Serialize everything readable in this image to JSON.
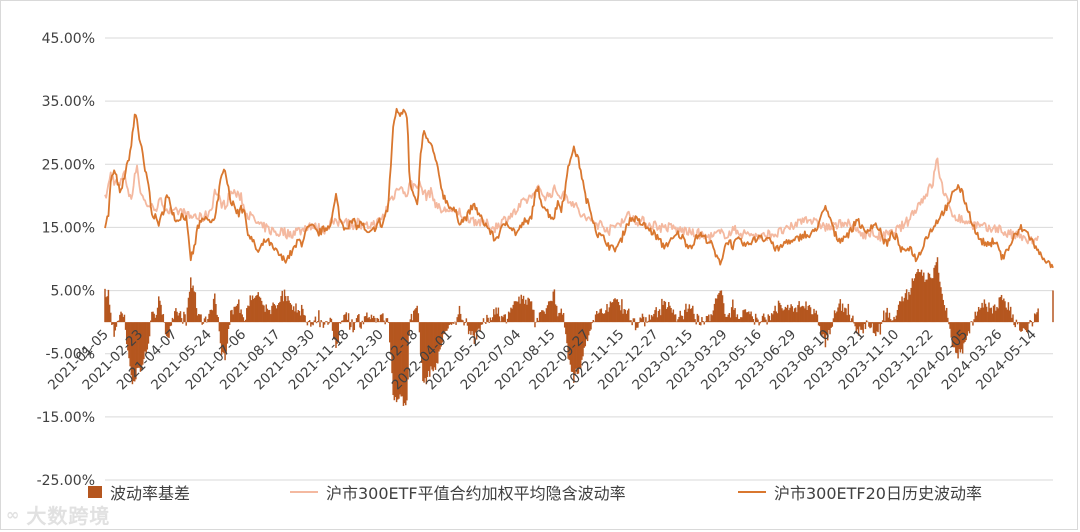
{
  "chart_data": {
    "type": "line",
    "title": "",
    "xlabel": "",
    "ylabel": "",
    "ylim": [
      -0.25,
      0.45
    ],
    "yticks": [
      -0.25,
      -0.15,
      -0.05,
      0.05,
      0.15,
      0.25,
      0.35,
      0.45
    ],
    "ytick_labels": [
      "-25.00%",
      "-15.00%",
      "-5.00%",
      "5.00%",
      "15.00%",
      "25.00%",
      "35.00%",
      "45.00%"
    ],
    "x_tick_labels": [
      "2021-01-05",
      "2021-02-23",
      "2021-04-07",
      "2021-05-24",
      "2021-07-06",
      "2021-08-17",
      "2021-09-30",
      "2021-11-18",
      "2021-12-30",
      "2022-02-18",
      "2022-04-01",
      "2022-05-20",
      "2022-07-04",
      "2022-08-15",
      "2022-09-27",
      "2022-11-15",
      "2022-12-27",
      "2023-02-15",
      "2023-03-29",
      "2023-05-16",
      "2023-06-29",
      "2023-08-10",
      "2023-09-21",
      "2023-11-10",
      "2023-12-22",
      "2024-02-05",
      "2024-03-26",
      "2024-05-14"
    ],
    "grid": "horizontal",
    "legend_position": "bottom",
    "anchors": {
      "x_index": [
        0,
        3.0,
        5.0,
        7.6,
        10.7,
        13.4,
        16.8,
        19.7,
        23.0,
        26.2,
        27.8,
        30.1,
        32.4,
        34.9,
        38.9,
        40.0,
        42.3,
        45.9,
        47.6,
        49.8,
        51.8,
        53.4,
        56.8,
        59.2,
        62.7,
        67.2,
        70.9,
        74.8,
        78.6,
        80.8,
        85.3,
        89.1,
        93.0,
        96.4,
        100.8,
        105.0,
        110.2,
        114.2,
        117.4,
        118.8,
        120.2,
        121.5,
        122.8,
        124.1,
        125.5,
        128.6,
        131.3,
        134.1,
        137.0,
        140.5,
        144.2,
        147.2,
        150.9,
        155.1,
        158.9,
        163.0,
        166.8,
        169.2,
        172.0,
        174.8,
        178.4,
        182.1,
        185.9,
        189.8,
        194.1,
        198.0,
        202.0,
        205.9,
        209.5,
        213.8,
        217.2,
        221.0,
        224.4,
        228.3,
        232.4,
        236.2,
        239.9,
        242.2,
        244.8,
        247.6,
        250.0,
        252.4,
        255.3,
        258.3,
        261.8,
        264.5,
        266.3,
        269.9,
        273.1,
        276.2,
        278.6,
        280.8,
        282.5,
        285.1,
        288.8,
        292.1,
        296.1,
        299.2,
        303.0,
        306.3,
        309.8,
        312.2,
        315.2,
        317.5,
        320.3,
        323.6,
        326.6,
        330.6,
        334.7,
        338.1,
        341.0,
        344.5,
        347.9,
        351.4,
        355.3,
        359.6,
        363.4,
        366.8,
        369.8,
        373.1,
        375.9,
        378.9,
        381.7,
        385.3,
        388.5,
        392.5,
        395.9,
        399.0,
        402.3,
        405.7,
        409.2,
        412.7,
        416.2,
        419.9,
        423.9,
        427.5,
        430.3,
        434.2,
        437.8,
        441.1,
        444.6,
        448.0,
        451.6,
        455.0,
        458.3,
        462.4,
        466.0,
        469.8,
        473.8,
        476.6,
        480.5,
        484.6,
        488.2,
        492.1,
        496.5,
        500.6,
        504.6,
        508.2,
        512.1,
        516.0,
        519.6,
        523.2,
        527.3,
        531.4,
        535.1,
        538.6,
        542.0,
        545.5,
        549.2,
        552.8,
        557.5,
        561.6,
        565.5,
        569.2,
        573.1,
        576.8,
        580.8,
        584.2,
        588.2,
        592.2,
        596.3,
        600.3,
        604.1,
        607.9,
        611.5,
        615.0,
        618.5,
        622.4,
        625.9,
        630.1,
        634.1,
        638.0,
        642.0,
        646.1,
        650.2,
        654.3,
        657.9,
        661.5,
        664.9,
        668.4,
        672.5,
        676.6,
        680.4,
        684.3,
        688.2,
        691.9,
        695.9,
        699.0,
        702.0,
        705.4,
        708.8,
        713.1,
        716.7,
        720.5,
        723.9,
        727.4,
        731.3,
        734.9,
        738.4,
        742.1,
        746.5,
        750.5,
        754.2,
        758.1,
        761.9,
        765.5,
        769.2,
        773.3,
        776.9,
        780.7,
        784.1,
        787.6,
        791.2,
        794.9,
        798.1,
        800.3,
        803.8,
        807.4,
        810.3,
        813.4,
        816.2,
        819.1,
        822.6,
        826.1,
        828.9
      ],
      "hist_vol": [
        0.155,
        0.17,
        0.22,
        0.24,
        0.225,
        0.2,
        0.23,
        0.25,
        0.28,
        0.33,
        0.325,
        0.29,
        0.27,
        0.24,
        0.21,
        0.18,
        0.17,
        0.16,
        0.155,
        0.17,
        0.18,
        0.2,
        0.19,
        0.175,
        0.16,
        0.17,
        0.165,
        0.1,
        0.12,
        0.15,
        0.16,
        0.165,
        0.155,
        0.17,
        0.22,
        0.245,
        0.19,
        0.18,
        0.17,
        0.19,
        0.175,
        0.185,
        0.16,
        0.15,
        0.14,
        0.13,
        0.12,
        0.11,
        0.12,
        0.13,
        0.125,
        0.115,
        0.11,
        0.1,
        0.1,
        0.11,
        0.12,
        0.13,
        0.125,
        0.14,
        0.15,
        0.15,
        0.14,
        0.145,
        0.15,
        0.16,
        0.2,
        0.16,
        0.15,
        0.155,
        0.16,
        0.15,
        0.16,
        0.14,
        0.14,
        0.15,
        0.16,
        0.15,
        0.17,
        0.18,
        0.25,
        0.32,
        0.335,
        0.33,
        0.34,
        0.325,
        0.22,
        0.2,
        0.18,
        0.27,
        0.3,
        0.295,
        0.285,
        0.28,
        0.26,
        0.23,
        0.2,
        0.19,
        0.18,
        0.175,
        0.16,
        0.16,
        0.165,
        0.17,
        0.18,
        0.185,
        0.17,
        0.16,
        0.15,
        0.14,
        0.13,
        0.14,
        0.15,
        0.16,
        0.15,
        0.14,
        0.15,
        0.16,
        0.155,
        0.17,
        0.2,
        0.21,
        0.19,
        0.18,
        0.17,
        0.165,
        0.19,
        0.18,
        0.21,
        0.25,
        0.275,
        0.265,
        0.24,
        0.2,
        0.18,
        0.16,
        0.14,
        0.135,
        0.13,
        0.12,
        0.115,
        0.12,
        0.13,
        0.15,
        0.16,
        0.165,
        0.16,
        0.155,
        0.15,
        0.145,
        0.14,
        0.13,
        0.12,
        0.125,
        0.13,
        0.14,
        0.135,
        0.125,
        0.12,
        0.13,
        0.14,
        0.135,
        0.13,
        0.12,
        0.1,
        0.095,
        0.12,
        0.13,
        0.12,
        0.13,
        0.125,
        0.12,
        0.13,
        0.13,
        0.14,
        0.13,
        0.135,
        0.12,
        0.115,
        0.12,
        0.13,
        0.125,
        0.13,
        0.135,
        0.14,
        0.135,
        0.14,
        0.15,
        0.165,
        0.18,
        0.165,
        0.14,
        0.13,
        0.135,
        0.14,
        0.15,
        0.165,
        0.15,
        0.14,
        0.15,
        0.155,
        0.15,
        0.13,
        0.125,
        0.14,
        0.135,
        0.115,
        0.11,
        0.12,
        0.115,
        0.1,
        0.11,
        0.13,
        0.14,
        0.15,
        0.16,
        0.17,
        0.18,
        0.185,
        0.21,
        0.215,
        0.2,
        0.18,
        0.16,
        0.14,
        0.13,
        0.125,
        0.12,
        0.13,
        0.125,
        0.1,
        0.11,
        0.12,
        0.135,
        0.14,
        0.15,
        0.145,
        0.14,
        0.13,
        0.12,
        0.11,
        0.105,
        0.1,
        0.09,
        0.085
      ],
      "implied_vol": [
        0.195,
        0.215,
        0.235,
        0.225,
        0.22,
        0.215,
        0.245,
        0.205,
        0.2,
        0.23,
        0.255,
        0.215,
        0.2,
        0.19,
        0.185,
        0.18,
        0.185,
        0.18,
        0.19,
        0.19,
        0.185,
        0.18,
        0.175,
        0.17,
        0.175,
        0.175,
        0.17,
        0.165,
        0.17,
        0.165,
        0.165,
        0.17,
        0.18,
        0.21,
        0.19,
        0.185,
        0.205,
        0.205,
        0.195,
        0.205,
        0.19,
        0.18,
        0.175,
        0.175,
        0.17,
        0.165,
        0.16,
        0.155,
        0.15,
        0.15,
        0.145,
        0.145,
        0.14,
        0.145,
        0.14,
        0.14,
        0.145,
        0.145,
        0.145,
        0.15,
        0.155,
        0.15,
        0.15,
        0.145,
        0.15,
        0.16,
        0.155,
        0.16,
        0.165,
        0.155,
        0.155,
        0.16,
        0.15,
        0.15,
        0.155,
        0.155,
        0.16,
        0.165,
        0.17,
        0.19,
        0.195,
        0.2,
        0.21,
        0.22,
        0.2,
        0.205,
        0.22,
        0.215,
        0.22,
        0.215,
        0.205,
        0.2,
        0.205,
        0.205,
        0.19,
        0.18,
        0.175,
        0.18,
        0.175,
        0.17,
        0.175,
        0.17,
        0.16,
        0.165,
        0.165,
        0.16,
        0.16,
        0.155,
        0.155,
        0.15,
        0.15,
        0.155,
        0.16,
        0.165,
        0.17,
        0.175,
        0.185,
        0.19,
        0.195,
        0.2,
        0.205,
        0.21,
        0.205,
        0.2,
        0.2,
        0.21,
        0.205,
        0.2,
        0.2,
        0.195,
        0.19,
        0.18,
        0.17,
        0.165,
        0.16,
        0.16,
        0.155,
        0.155,
        0.15,
        0.145,
        0.15,
        0.155,
        0.16,
        0.165,
        0.17,
        0.165,
        0.16,
        0.16,
        0.155,
        0.155,
        0.155,
        0.15,
        0.15,
        0.15,
        0.15,
        0.145,
        0.145,
        0.145,
        0.14,
        0.14,
        0.14,
        0.135,
        0.135,
        0.135,
        0.14,
        0.14,
        0.14,
        0.14,
        0.145,
        0.145,
        0.14,
        0.14,
        0.14,
        0.135,
        0.135,
        0.135,
        0.14,
        0.14,
        0.14,
        0.145,
        0.145,
        0.15,
        0.155,
        0.16,
        0.165,
        0.165,
        0.16,
        0.155,
        0.155,
        0.15,
        0.15,
        0.15,
        0.155,
        0.16,
        0.155,
        0.15,
        0.145,
        0.14,
        0.14,
        0.14,
        0.14,
        0.135,
        0.135,
        0.14,
        0.14,
        0.145,
        0.15,
        0.155,
        0.16,
        0.17,
        0.18,
        0.19,
        0.2,
        0.21,
        0.22,
        0.26,
        0.22,
        0.2,
        0.18,
        0.17,
        0.165,
        0.16,
        0.16,
        0.155,
        0.155,
        0.15,
        0.15,
        0.145,
        0.15,
        0.15,
        0.145,
        0.14,
        0.14,
        0.135,
        0.14,
        0.135,
        0.13,
        0.13,
        0.13,
        0.125,
        0.13
      ]
    },
    "series": [
      {
        "name": "波动率基差",
        "kind": "bar",
        "color": "#b5561f"
      },
      {
        "name": "沪市300ETF平值合约加权平均隐含波动率",
        "kind": "line",
        "color": "#f4b9a0"
      },
      {
        "name": "沪市300ETF20日历史波动率",
        "kind": "line",
        "color": "#d9772f"
      }
    ]
  },
  "watermark": {
    "icon": "∞",
    "text": "大数跨境"
  }
}
